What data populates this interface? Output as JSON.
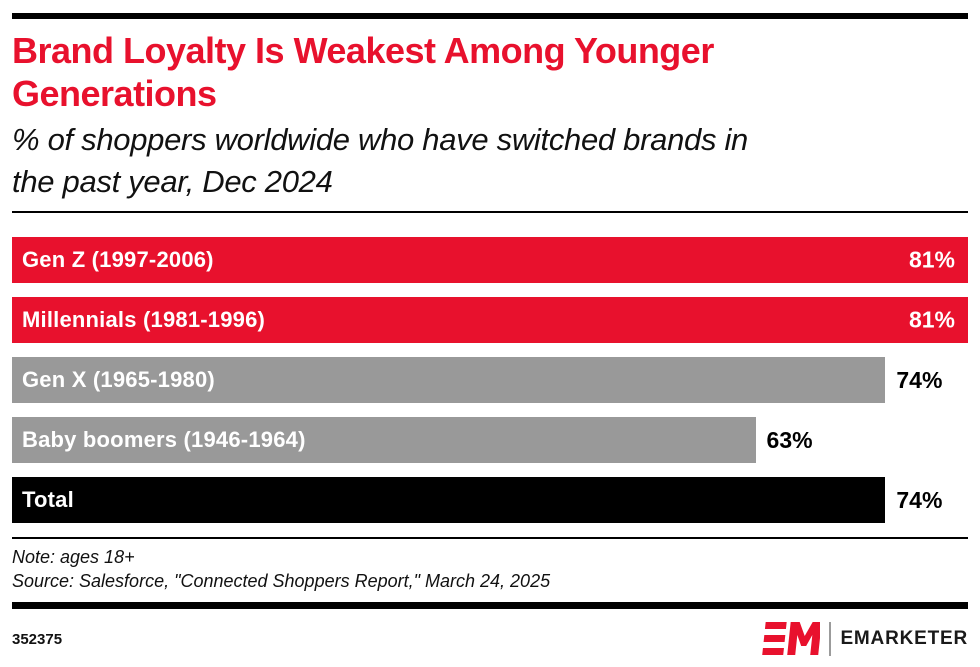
{
  "header": {
    "title_lines": [
      "Brand Loyalty Is Weakest Among Younger",
      "Generations"
    ],
    "subtitle_lines": [
      "% of shoppers worldwide who have switched brands in",
      "the past year, Dec 2024"
    ]
  },
  "chart_data": {
    "type": "bar",
    "orientation": "horizontal",
    "title": "Brand Loyalty Is Weakest Among Younger Generations",
    "subtitle": "% of shoppers worldwide who have switched brands in the past year, Dec 2024",
    "unit": "%",
    "xlim": [
      0,
      81
    ],
    "grid": false,
    "legend": "none",
    "categories": [
      "Gen Z (1997-2006)",
      "Millennials (1981-1996)",
      "Gen X (1965-1980)",
      "Baby boomers (1946-1964)",
      "Total"
    ],
    "values": [
      81,
      81,
      74,
      63,
      74
    ],
    "rows": [
      {
        "label": "Gen Z (1997-2006)",
        "value": 81,
        "value_label": "81%",
        "color": "#E8112D",
        "value_position": "inside"
      },
      {
        "label": "Millennials (1981-1996)",
        "value": 81,
        "value_label": "81%",
        "color": "#E8112D",
        "value_position": "inside"
      },
      {
        "label": "Gen X (1965-1980)",
        "value": 74,
        "value_label": "74%",
        "color": "#999999",
        "value_position": "outside"
      },
      {
        "label": "Baby boomers (1946-1964)",
        "value": 63,
        "value_label": "63%",
        "color": "#999999",
        "value_position": "outside"
      },
      {
        "label": "Total",
        "value": 74,
        "value_label": "74%",
        "color": "#000000",
        "value_position": "outside"
      }
    ]
  },
  "footer": {
    "note": "Note: ages 18+",
    "source": "Source: Salesforce, \"Connected Shoppers Report,\" March 24, 2025",
    "chart_id": "352375",
    "brand": "EMARKETER"
  },
  "colors": {
    "accent_red": "#E8112D",
    "bar_gray": "#999999",
    "bar_black": "#000000",
    "rule_black": "#000000"
  }
}
